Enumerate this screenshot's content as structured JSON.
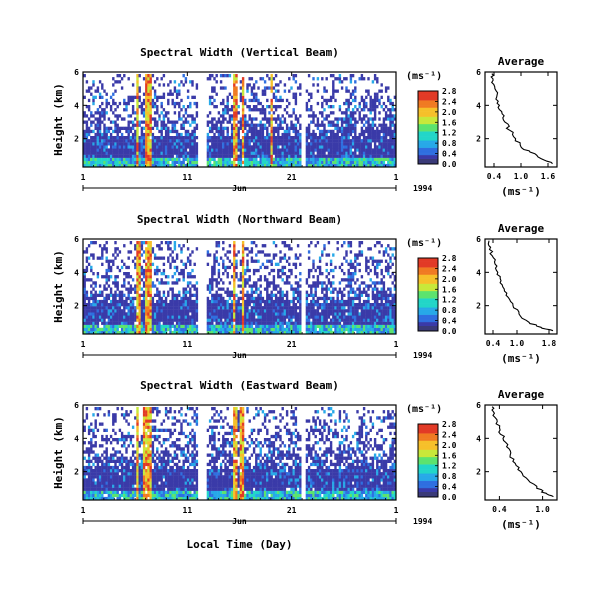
{
  "figure": {
    "ylabel": "Height (km)",
    "xlabel": "Local Time (Day)",
    "month": "Jun",
    "year": "1994",
    "x_ticks": [
      "1",
      "11",
      "21",
      "1"
    ],
    "y_ticks": [
      "6",
      "4",
      "2"
    ],
    "colorbar_unit": "(ms⁻¹)",
    "colorbar_ticks": [
      "2.8",
      "2.4",
      "2.0",
      "1.6",
      "1.2",
      "0.8",
      "0.4",
      "0.0"
    ],
    "avg_title": "Average",
    "avg_xlabel": "(ms⁻¹)"
  },
  "colors": {
    "scale": [
      "#3a3aa8",
      "#2f6fe0",
      "#27a9e8",
      "#22d6c8",
      "#5ce36e",
      "#c8e83a",
      "#f6c02a",
      "#f07a22",
      "#e23a26"
    ]
  },
  "chart_data": [
    {
      "type": "heatmap",
      "title": "Spectral Width (Vertical Beam)",
      "xlabel": "Local Time (Day)",
      "ylabel": "Height (km)",
      "x_range_days": [
        1,
        31
      ],
      "ylim": [
        0.3,
        6
      ],
      "colorbar_label": "(ms⁻¹)",
      "color_range": [
        0.0,
        2.8
      ],
      "gaps_days": [
        [
          12.0,
          12.8
        ],
        [
          21.8,
          22.3
        ]
      ],
      "high_width_bands_days": [
        6.1,
        7.0,
        7.3,
        15.5,
        16.2,
        19.0
      ],
      "profile": {
        "title": "Average",
        "xlabel": "(ms⁻¹)",
        "xlim": [
          0.2,
          1.8
        ],
        "ylim": [
          0.3,
          6
        ],
        "x_ticks": [
          "0.4",
          "1.0",
          "1.6"
        ],
        "y_ticks": [
          "6",
          "4",
          "2"
        ],
        "heights": [
          5.9,
          5.5,
          5.0,
          4.5,
          4.0,
          3.5,
          3.0,
          2.5,
          2.0,
          1.5,
          1.2,
          0.8,
          0.5
        ],
        "values": [
          0.35,
          0.38,
          0.42,
          0.46,
          0.52,
          0.58,
          0.64,
          0.75,
          0.88,
          1.0,
          1.2,
          1.45,
          1.7
        ]
      }
    },
    {
      "type": "heatmap",
      "title": "Spectral Width (Northward Beam)",
      "xlabel": "Local Time (Day)",
      "ylabel": "Height (km)",
      "x_range_days": [
        1,
        31
      ],
      "ylim": [
        0.3,
        6
      ],
      "colorbar_label": "(ms⁻¹)",
      "color_range": [
        0.0,
        2.8
      ],
      "gaps_days": [
        [
          12.0,
          12.8
        ],
        [
          21.8,
          22.3
        ]
      ],
      "high_width_bands_days": [
        6.2,
        7.0,
        7.3,
        15.4,
        16.2
      ],
      "profile": {
        "title": "Average",
        "xlabel": "(ms⁻¹)",
        "xlim": [
          0.2,
          2.0
        ],
        "ylim": [
          0.3,
          6
        ],
        "x_ticks": [
          "0.4",
          "1.0",
          "1.8"
        ],
        "y_ticks": [
          "6",
          "4",
          "2"
        ],
        "heights": [
          5.9,
          5.5,
          5.0,
          4.5,
          4.0,
          3.5,
          3.0,
          2.5,
          2.0,
          1.5,
          1.0,
          0.7,
          0.5
        ],
        "values": [
          0.3,
          0.34,
          0.38,
          0.45,
          0.52,
          0.6,
          0.68,
          0.78,
          0.9,
          1.05,
          1.3,
          1.6,
          1.9
        ]
      }
    },
    {
      "type": "heatmap",
      "title": "Spectral Width (Eastward Beam)",
      "xlabel": "Local Time (Day)",
      "ylabel": "Height (km)",
      "x_range_days": [
        1,
        31
      ],
      "ylim": [
        0.3,
        6
      ],
      "colorbar_label": "(ms⁻¹)",
      "color_range": [
        0.0,
        2.8
      ],
      "gaps_days": [
        [
          12.0,
          12.8
        ],
        [
          21.8,
          22.3
        ]
      ],
      "high_width_bands_days": [
        6.1,
        6.9,
        7.3,
        15.5,
        16.1
      ],
      "profile": {
        "title": "Average",
        "xlabel": "(ms⁻¹)",
        "xlim": [
          0.2,
          1.2
        ],
        "ylim": [
          0.3,
          6
        ],
        "x_ticks": [
          "0.4",
          "1.0"
        ],
        "y_ticks": [
          "6",
          "4",
          "2"
        ],
        "heights": [
          5.9,
          5.5,
          5.0,
          4.5,
          4.0,
          3.5,
          3.0,
          2.5,
          2.0,
          1.5,
          1.0,
          0.7,
          0.5
        ],
        "values": [
          0.3,
          0.33,
          0.37,
          0.41,
          0.45,
          0.5,
          0.55,
          0.62,
          0.7,
          0.8,
          0.92,
          1.05,
          1.15
        ]
      }
    }
  ]
}
